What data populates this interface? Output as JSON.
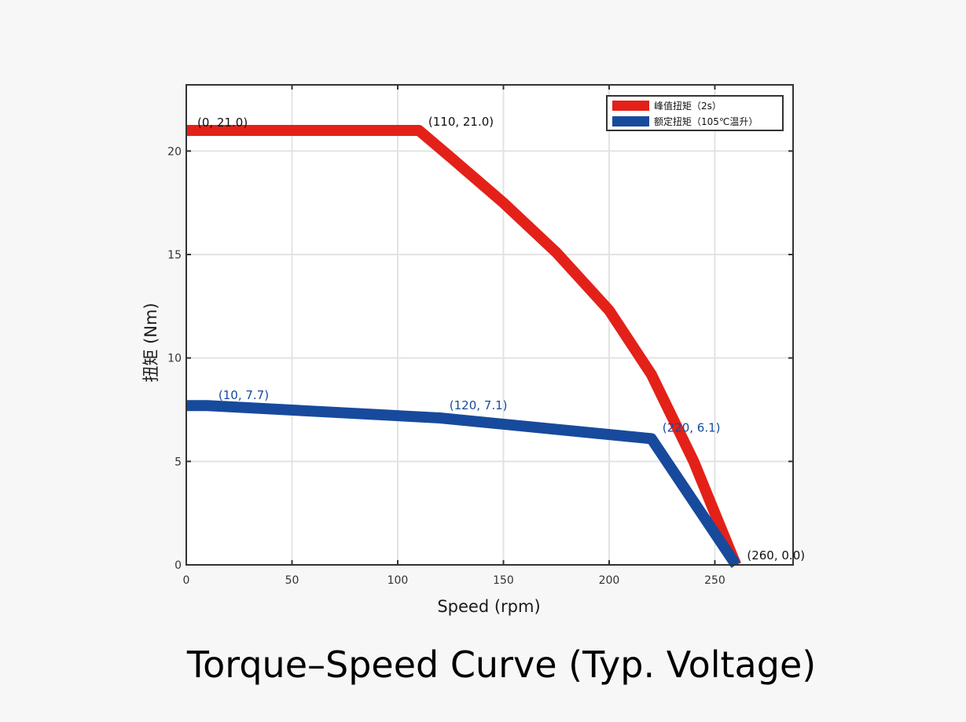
{
  "chart_data": {
    "type": "line",
    "caption": "Torque–Speed Curve (Typ. Voltage)",
    "xlabel": "Speed (rpm)",
    "ylabel": "扭矩 (Nm)",
    "xlim": [
      0,
      287
    ],
    "ylim": [
      0,
      23.2
    ],
    "xticks": [
      0,
      50,
      100,
      150,
      200,
      250
    ],
    "yticks": [
      0,
      5,
      10,
      15,
      20
    ],
    "grid": true,
    "legend_position": "top-right",
    "series": [
      {
        "name": "峰值扭矩（2s）",
        "color": "#e32119",
        "x": [
          0,
          110,
          125,
          150,
          175,
          200,
          220,
          240,
          260
        ],
        "y": [
          21.0,
          21.0,
          19.7,
          17.5,
          15.1,
          12.3,
          9.2,
          5.0,
          0.0
        ]
      },
      {
        "name": "额定扭矩（105℃温升）",
        "color": "#174a9c",
        "x": [
          0,
          10,
          120,
          220,
          260
        ],
        "y": [
          7.7,
          7.7,
          7.1,
          6.1,
          0.0
        ]
      }
    ],
    "annotations": [
      {
        "text": "(0, 21.0)",
        "x": 0,
        "y": 21.0,
        "color": "#111111"
      },
      {
        "text": "(110, 21.0)",
        "x": 110,
        "y": 21.0,
        "color": "#111111"
      },
      {
        "text": "(10, 7.7)",
        "x": 10,
        "y": 7.7,
        "color": "#174a9c"
      },
      {
        "text": "(120, 7.1)",
        "x": 120,
        "y": 7.1,
        "color": "#174a9c"
      },
      {
        "text": "(220, 6.1)",
        "x": 220,
        "y": 6.1,
        "color": "#174a9c"
      },
      {
        "text": "(260, 0.0)",
        "x": 260,
        "y": 0.0,
        "color": "#111111"
      }
    ]
  }
}
